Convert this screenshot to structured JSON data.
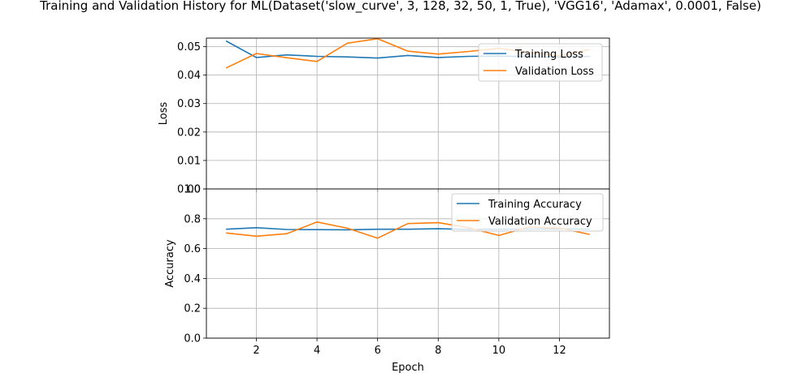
{
  "title": "Training and Validation History for ML(Dataset('slow_curve', 3, 128, 32, 50, 1, True), 'VGG16', 'Adamax', 0.0001, False)",
  "colors": {
    "training": "#1f77b4",
    "validation": "#ff7f0e",
    "grid": "#b0b0b0"
  },
  "chart_data": [
    {
      "type": "line",
      "panel": "loss",
      "xlabel": "",
      "ylabel": "Loss",
      "xlim": [
        0.35,
        13.65
      ],
      "ylim": [
        0.0,
        0.053
      ],
      "yticks": [
        0.0,
        0.01,
        0.02,
        0.03,
        0.04,
        0.05
      ],
      "ytick_labels": [
        "0.00",
        "0.01",
        "0.02",
        "0.03",
        "0.04",
        "0.05"
      ],
      "grid": true,
      "legend_position": "top-right",
      "x": [
        1,
        2,
        3,
        4,
        5,
        6,
        7,
        8,
        9,
        10,
        11,
        12,
        13
      ],
      "series": [
        {
          "name": "Training Loss",
          "color": "#1f77b4",
          "values": [
            0.052,
            0.0462,
            0.0471,
            0.0466,
            0.0464,
            0.046,
            0.0469,
            0.0462,
            0.0466,
            0.0467,
            0.0465,
            0.0463,
            0.0466
          ]
        },
        {
          "name": "Validation Loss",
          "color": "#ff7f0e",
          "values": [
            0.0425,
            0.0476,
            0.0461,
            0.0448,
            0.0512,
            0.0528,
            0.0484,
            0.0474,
            0.0483,
            0.0494,
            0.0479,
            0.0468,
            0.049
          ]
        }
      ]
    },
    {
      "type": "line",
      "panel": "accuracy",
      "xlabel": "Epoch",
      "ylabel": "Accuracy",
      "xlim": [
        0.35,
        13.65
      ],
      "ylim": [
        0.0,
        1.0
      ],
      "yticks": [
        0.0,
        0.2,
        0.4,
        0.6,
        0.8,
        1.0
      ],
      "ytick_labels": [
        "0.0",
        "0.2",
        "0.4",
        "0.6",
        "0.8",
        "1.0"
      ],
      "xticks": [
        2,
        4,
        6,
        8,
        10,
        12
      ],
      "xtick_labels": [
        "2",
        "4",
        "6",
        "8",
        "10",
        "12"
      ],
      "grid": true,
      "legend_position": "top-right",
      "x": [
        1,
        2,
        3,
        4,
        5,
        6,
        7,
        8,
        9,
        10,
        11,
        12,
        13
      ],
      "series": [
        {
          "name": "Training Accuracy",
          "color": "#1f77b4",
          "values": [
            0.73,
            0.74,
            0.728,
            0.727,
            0.726,
            0.73,
            0.73,
            0.733,
            0.729,
            0.73,
            0.731,
            0.732,
            0.731
          ]
        },
        {
          "name": "Validation Accuracy",
          "color": "#ff7f0e",
          "values": [
            0.705,
            0.683,
            0.7,
            0.778,
            0.737,
            0.67,
            0.768,
            0.774,
            0.74,
            0.688,
            0.745,
            0.738,
            0.695
          ]
        }
      ]
    }
  ]
}
